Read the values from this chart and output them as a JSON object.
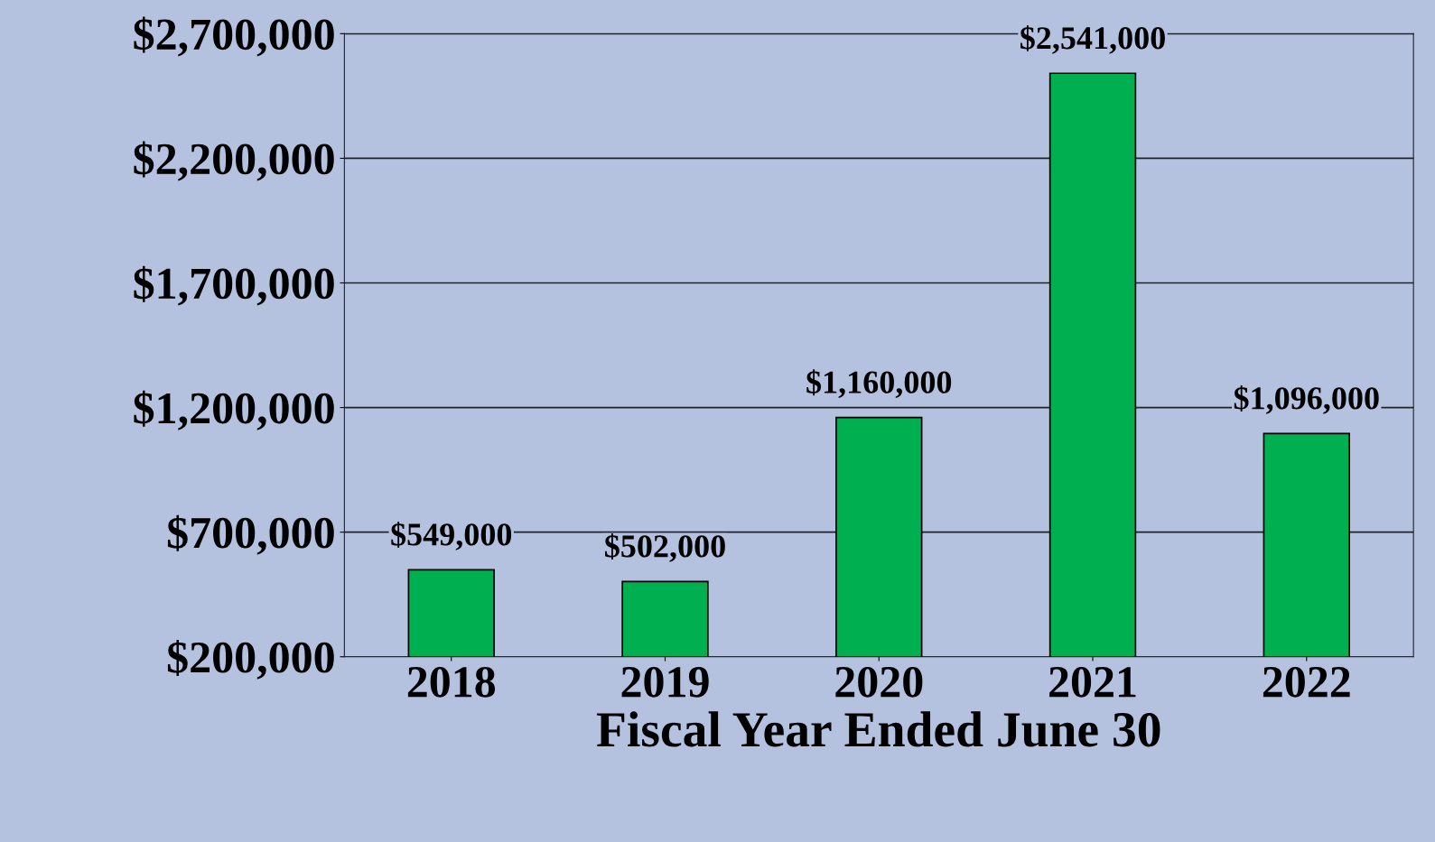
{
  "chart_data": {
    "type": "bar",
    "xlabel": "Fiscal Year Ended June 30",
    "categories": [
      "2018",
      "2019",
      "2020",
      "2021",
      "2022"
    ],
    "values": [
      549000,
      502000,
      1160000,
      2541000,
      1096000
    ],
    "value_labels": [
      "$549,000",
      "$502,000",
      "$1,160,000",
      "$2,541,000",
      "$1,096,000"
    ],
    "color": "#00b050",
    "ylim": [
      200000,
      2700000
    ],
    "yticks": [
      {
        "value": 200000,
        "label": "$200,000"
      },
      {
        "value": 700000,
        "label": "$700,000"
      },
      {
        "value": 1200000,
        "label": "$1,200,000"
      },
      {
        "value": 1700000,
        "label": "$1,700,000"
      },
      {
        "value": 2200000,
        "label": "$2,200,000"
      },
      {
        "value": 2700000,
        "label": "$2,700,000"
      }
    ],
    "grid": "y",
    "legend": false
  }
}
